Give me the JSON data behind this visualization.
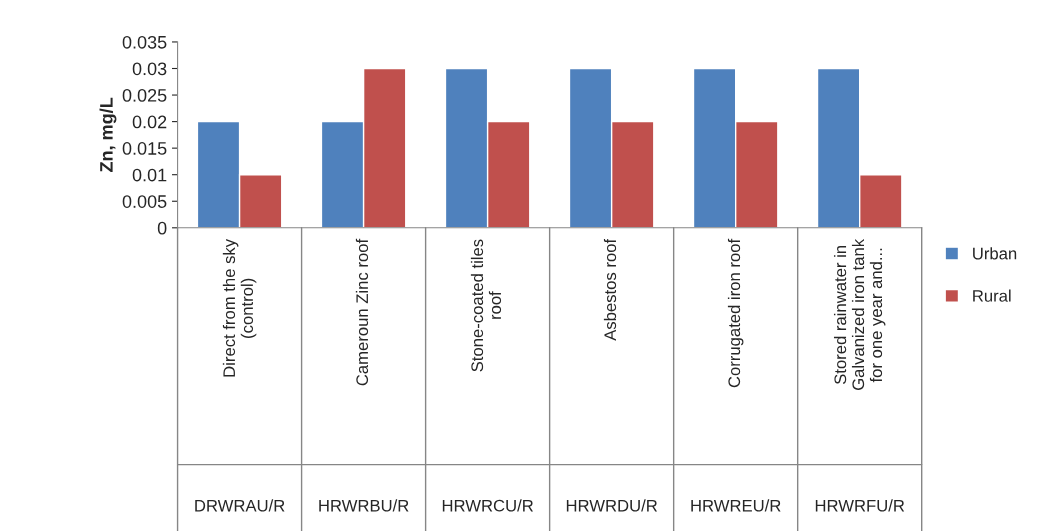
{
  "chart_data": {
    "type": "bar",
    "ylabel": "Zn, mg/L",
    "categories": [
      "Direct from the sky\n(control)",
      "Cameroun Zinc roof",
      "Stone-coated tiles\nroof",
      "Asbestos roof",
      "Corrugated iron roof",
      "Stored rainwater in\nGalvanized iron tank\nfor one year and..."
    ],
    "series": [
      {
        "name": "Urban",
        "color": "#4f81bd",
        "values": [
          0.02,
          0.02,
          0.03,
          0.03,
          0.03,
          0.03
        ]
      },
      {
        "name": "Rural",
        "color": "#c0504d",
        "values": [
          0.01,
          0.03,
          0.02,
          0.02,
          0.02,
          0.01
        ]
      }
    ],
    "annotations": [
      "DRWRAU/R",
      "HRWRBU/R",
      "HRWRCU/R",
      "HRWRDU/R",
      "HRWREU/R",
      "HRWRFU/R"
    ],
    "ylim": [
      0,
      0.035
    ],
    "yticks": [
      0,
      0.005,
      0.01,
      0.015,
      0.02,
      0.025,
      0.03,
      0.035
    ],
    "grid": false,
    "legend": "right"
  }
}
